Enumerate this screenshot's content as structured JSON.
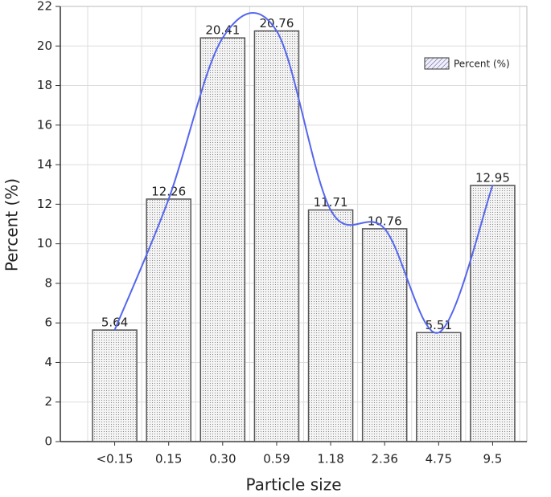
{
  "chart_data": {
    "type": "bar",
    "x_label": "Particle size",
    "y_label": "Percent (%)",
    "categories": [
      "<0.15",
      "0.15",
      "0.30",
      "0.59",
      "1.18",
      "2.36",
      "4.75",
      "9.5"
    ],
    "series": [
      {
        "name": "Percent (%)",
        "color": "#5566ee",
        "values": [
          5.64,
          12.26,
          20.41,
          20.76,
          11.71,
          10.76,
          5.51,
          12.95
        ]
      }
    ],
    "ylim": [
      0,
      22
    ],
    "yticks": [
      0,
      2,
      4,
      6,
      8,
      10,
      12,
      14,
      16,
      18,
      20,
      22
    ],
    "grid": true,
    "legend": "upper right"
  }
}
